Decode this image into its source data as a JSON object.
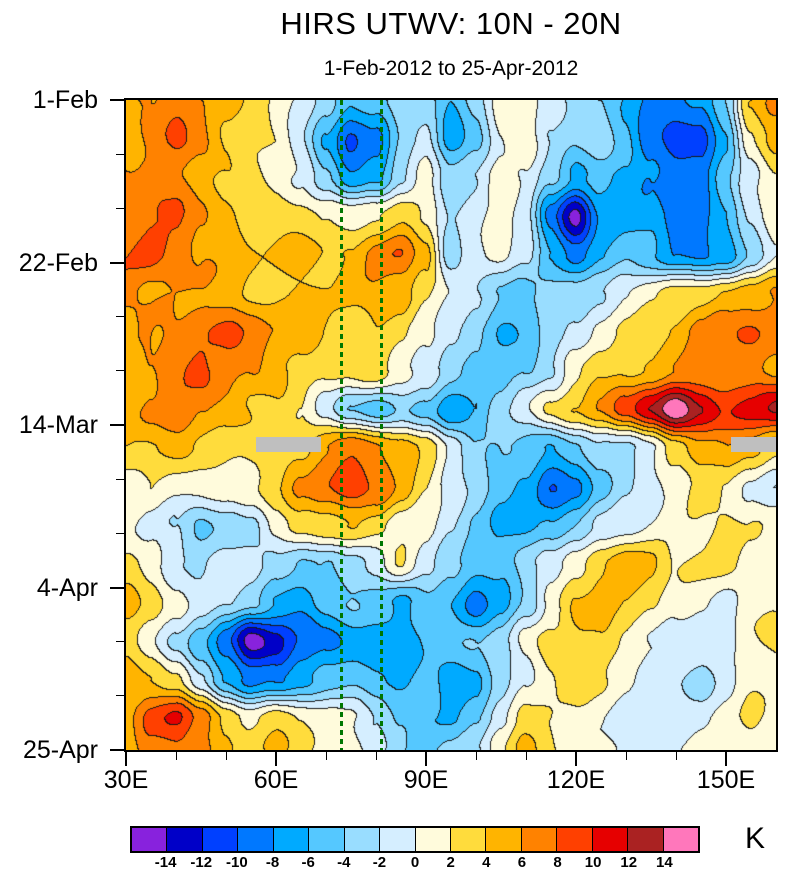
{
  "title": "HIRS UTWV: 10N - 20N",
  "subtitle": "1-Feb-2012 to 25-Apr-2012",
  "axes": {
    "y_tick_labels": [
      "1-Feb",
      "22-Feb",
      "14-Mar",
      "4-Apr",
      "25-Apr"
    ],
    "y_tick_days": [
      0,
      21,
      42,
      63,
      84
    ],
    "y_minor_interval_days": 7,
    "x_tick_labels": [
      "30E",
      "60E",
      "90E",
      "120E",
      "150E"
    ],
    "x_tick_lons": [
      30,
      60,
      90,
      120,
      150
    ],
    "x_minor_interval_deg": 10,
    "x_range_lons": [
      30,
      160
    ],
    "y_range_days": [
      0,
      84
    ]
  },
  "reference_lines": {
    "color": "#007700",
    "style": "dashed",
    "longitudes": [
      73,
      81
    ]
  },
  "missing_data": {
    "color": "#bfbfbf",
    "regions": [
      {
        "lon_start": 56,
        "lon_end": 69,
        "day_start": 43.5,
        "day_end": 45.5
      },
      {
        "lon_start": 151,
        "lon_end": 160,
        "day_start": 43.5,
        "day_end": 45.5
      }
    ]
  },
  "colorbar": {
    "unit_label": "K",
    "tick_labels": [
      "-14",
      "-12",
      "-10",
      "-8",
      "-6",
      "-4",
      "-2",
      "0",
      "2",
      "4",
      "6",
      "8",
      "10",
      "12",
      "14"
    ],
    "colors": [
      "#8822dd",
      "#0000c8",
      "#0040ff",
      "#0078ff",
      "#00aaff",
      "#55c8ff",
      "#99ddff",
      "#d5eeff",
      "#fffbdc",
      "#ffdc3c",
      "#ffb400",
      "#ff8200",
      "#ff4000",
      "#e60000",
      "#aa2222",
      "#ff77bb"
    ]
  },
  "chart_data": {
    "type": "heatmap",
    "title": "HIRS UTWV: 10N - 20N",
    "subtitle": "1-Feb-2012 to 25-Apr-2012",
    "unit": "K",
    "levels_K": [
      -14,
      -12,
      -10,
      -8,
      -6,
      -4,
      -2,
      0,
      2,
      4,
      6,
      8,
      10,
      12,
      14
    ],
    "x_lons": [
      30,
      35,
      40,
      45,
      50,
      55,
      60,
      65,
      70,
      75,
      80,
      85,
      90,
      95,
      100,
      105,
      110,
      115,
      120,
      125,
      130,
      135,
      140,
      145,
      150,
      155,
      160
    ],
    "y_days": [
      0,
      5,
      10,
      15,
      20,
      25,
      30,
      35,
      40,
      45,
      50,
      55,
      60,
      65,
      70,
      75,
      80,
      84
    ],
    "y_dates": [
      "1-Feb",
      "6-Feb",
      "11-Feb",
      "16-Feb",
      "21-Feb",
      "26-Feb",
      "2-Mar",
      "7-Mar",
      "12-Mar",
      "17-Mar",
      "22-Mar",
      "27-Mar",
      "1-Apr",
      "6-Apr",
      "11-Apr",
      "16-Apr",
      "21-Apr",
      "25-Apr"
    ],
    "values_K": [
      [
        5,
        6,
        7,
        6,
        5,
        3,
        2,
        0,
        -3,
        -6,
        -5,
        -2,
        -3,
        -6,
        -3,
        1,
        2,
        -1,
        -3,
        -4,
        -6,
        -8,
        -9,
        -8,
        -4,
        4,
        7
      ],
      [
        5,
        7,
        8,
        6,
        4,
        3,
        2,
        -1,
        -6,
        -11,
        -9,
        -4,
        -2,
        -7,
        -4,
        0,
        1,
        -2,
        -4,
        -3,
        -5,
        -9,
        -11,
        -10,
        -6,
        1,
        4
      ],
      [
        6,
        7,
        6,
        5,
        4,
        3,
        2,
        0,
        -4,
        -8,
        -6,
        -2,
        1,
        -3,
        -2,
        1,
        0,
        -4,
        -7,
        -5,
        -6,
        -8,
        -10,
        -9,
        -5,
        -1,
        2
      ],
      [
        7,
        8,
        8,
        6,
        5,
        4,
        3,
        3,
        2,
        1,
        2,
        3,
        1,
        -2,
        0,
        1,
        -2,
        -9,
        -15,
        -8,
        -7,
        -7,
        -9,
        -8,
        -6,
        -2,
        1
      ],
      [
        8,
        9,
        8,
        6,
        5,
        4,
        4,
        4,
        4,
        5,
        7,
        8,
        5,
        -4,
        -1,
        1,
        -1,
        -6,
        -8,
        -6,
        -5,
        -6,
        -8,
        -9,
        -7,
        -3,
        0
      ],
      [
        7,
        6,
        6,
        6,
        5,
        4,
        4,
        4,
        4,
        5,
        6,
        5,
        2,
        0,
        -2,
        -4,
        -5,
        -4,
        -3,
        -2,
        0,
        1,
        2,
        3,
        4,
        5,
        6
      ],
      [
        5,
        6,
        7,
        8,
        8,
        7,
        6,
        5,
        4,
        3,
        4,
        3,
        1,
        -2,
        -4,
        -6,
        -5,
        -3,
        -1,
        1,
        2,
        3,
        4,
        6,
        8,
        9,
        8
      ],
      [
        4,
        6,
        7,
        8,
        7,
        6,
        5,
        4,
        3,
        2,
        3,
        1,
        -1,
        -3,
        -4,
        -5,
        -4,
        -2,
        1,
        3,
        4,
        5,
        6,
        7,
        7,
        6,
        5
      ],
      [
        5,
        7,
        8,
        6,
        5,
        4,
        4,
        2,
        -1,
        -4,
        -5,
        -3,
        -5,
        -8,
        -6,
        -2,
        0,
        2,
        4,
        6,
        9,
        12,
        15,
        12,
        10,
        11,
        12
      ],
      [
        4,
        4,
        4,
        3,
        3,
        3,
        3,
        4,
        6,
        7,
        6,
        5,
        3,
        0,
        -3,
        -4,
        -5,
        -6,
        -5,
        -3,
        -2,
        0,
        3,
        6,
        6,
        4,
        2
      ],
      [
        2,
        2,
        1,
        1,
        1,
        2,
        3,
        6,
        8,
        10,
        8,
        5,
        2,
        -1,
        -3,
        -5,
        -7,
        -10,
        -8,
        -5,
        -3,
        -1,
        1,
        3,
        2,
        0,
        -2
      ],
      [
        1,
        0,
        -2,
        -5,
        -4,
        -2,
        1,
        3,
        4,
        4,
        3,
        1,
        0,
        -2,
        -4,
        -6,
        -7,
        -6,
        -4,
        -2,
        -1,
        0,
        1,
        2,
        3,
        2,
        1
      ],
      [
        3,
        1,
        -1,
        -2,
        -1,
        -1,
        -3,
        -5,
        -4,
        -2,
        -1,
        2,
        -1,
        -4,
        -6,
        -5,
        -3,
        -1,
        2,
        4,
        5,
        4,
        2,
        2,
        3,
        2,
        2
      ],
      [
        4,
        3,
        1,
        -1,
        -2,
        -4,
        -6,
        -7,
        -5,
        -4,
        -5,
        -6,
        -4,
        -6,
        -9,
        -7,
        -3,
        1,
        4,
        5,
        4,
        3,
        1,
        0,
        -1,
        1,
        2
      ],
      [
        3,
        1,
        -2,
        -6,
        -10,
        -15,
        -13,
        -10,
        -8,
        -7,
        -8,
        -7,
        -6,
        -5,
        -4,
        -2,
        1,
        3,
        4,
        3,
        1,
        0,
        -1,
        -1,
        0,
        2,
        2
      ],
      [
        4,
        4,
        2,
        -2,
        -6,
        -9,
        -8,
        -6,
        -5,
        -5,
        -6,
        -6,
        -5,
        -7,
        -6,
        -3,
        0,
        2,
        3,
        2,
        1,
        0,
        -2,
        -3,
        -1,
        1,
        1
      ],
      [
        6,
        9,
        10,
        7,
        4,
        2,
        3,
        2,
        1,
        0,
        -2,
        -5,
        -6,
        -6,
        -4,
        -1,
        2,
        2,
        1,
        0,
        -1,
        -2,
        -1,
        0,
        1,
        2,
        1
      ],
      [
        5,
        7,
        8,
        6,
        4,
        3,
        4,
        3,
        2,
        1,
        -2,
        -4,
        -5,
        -4,
        -2,
        2,
        5,
        3,
        1,
        0,
        -1,
        -1,
        0,
        1,
        1,
        2,
        1
      ]
    ]
  }
}
